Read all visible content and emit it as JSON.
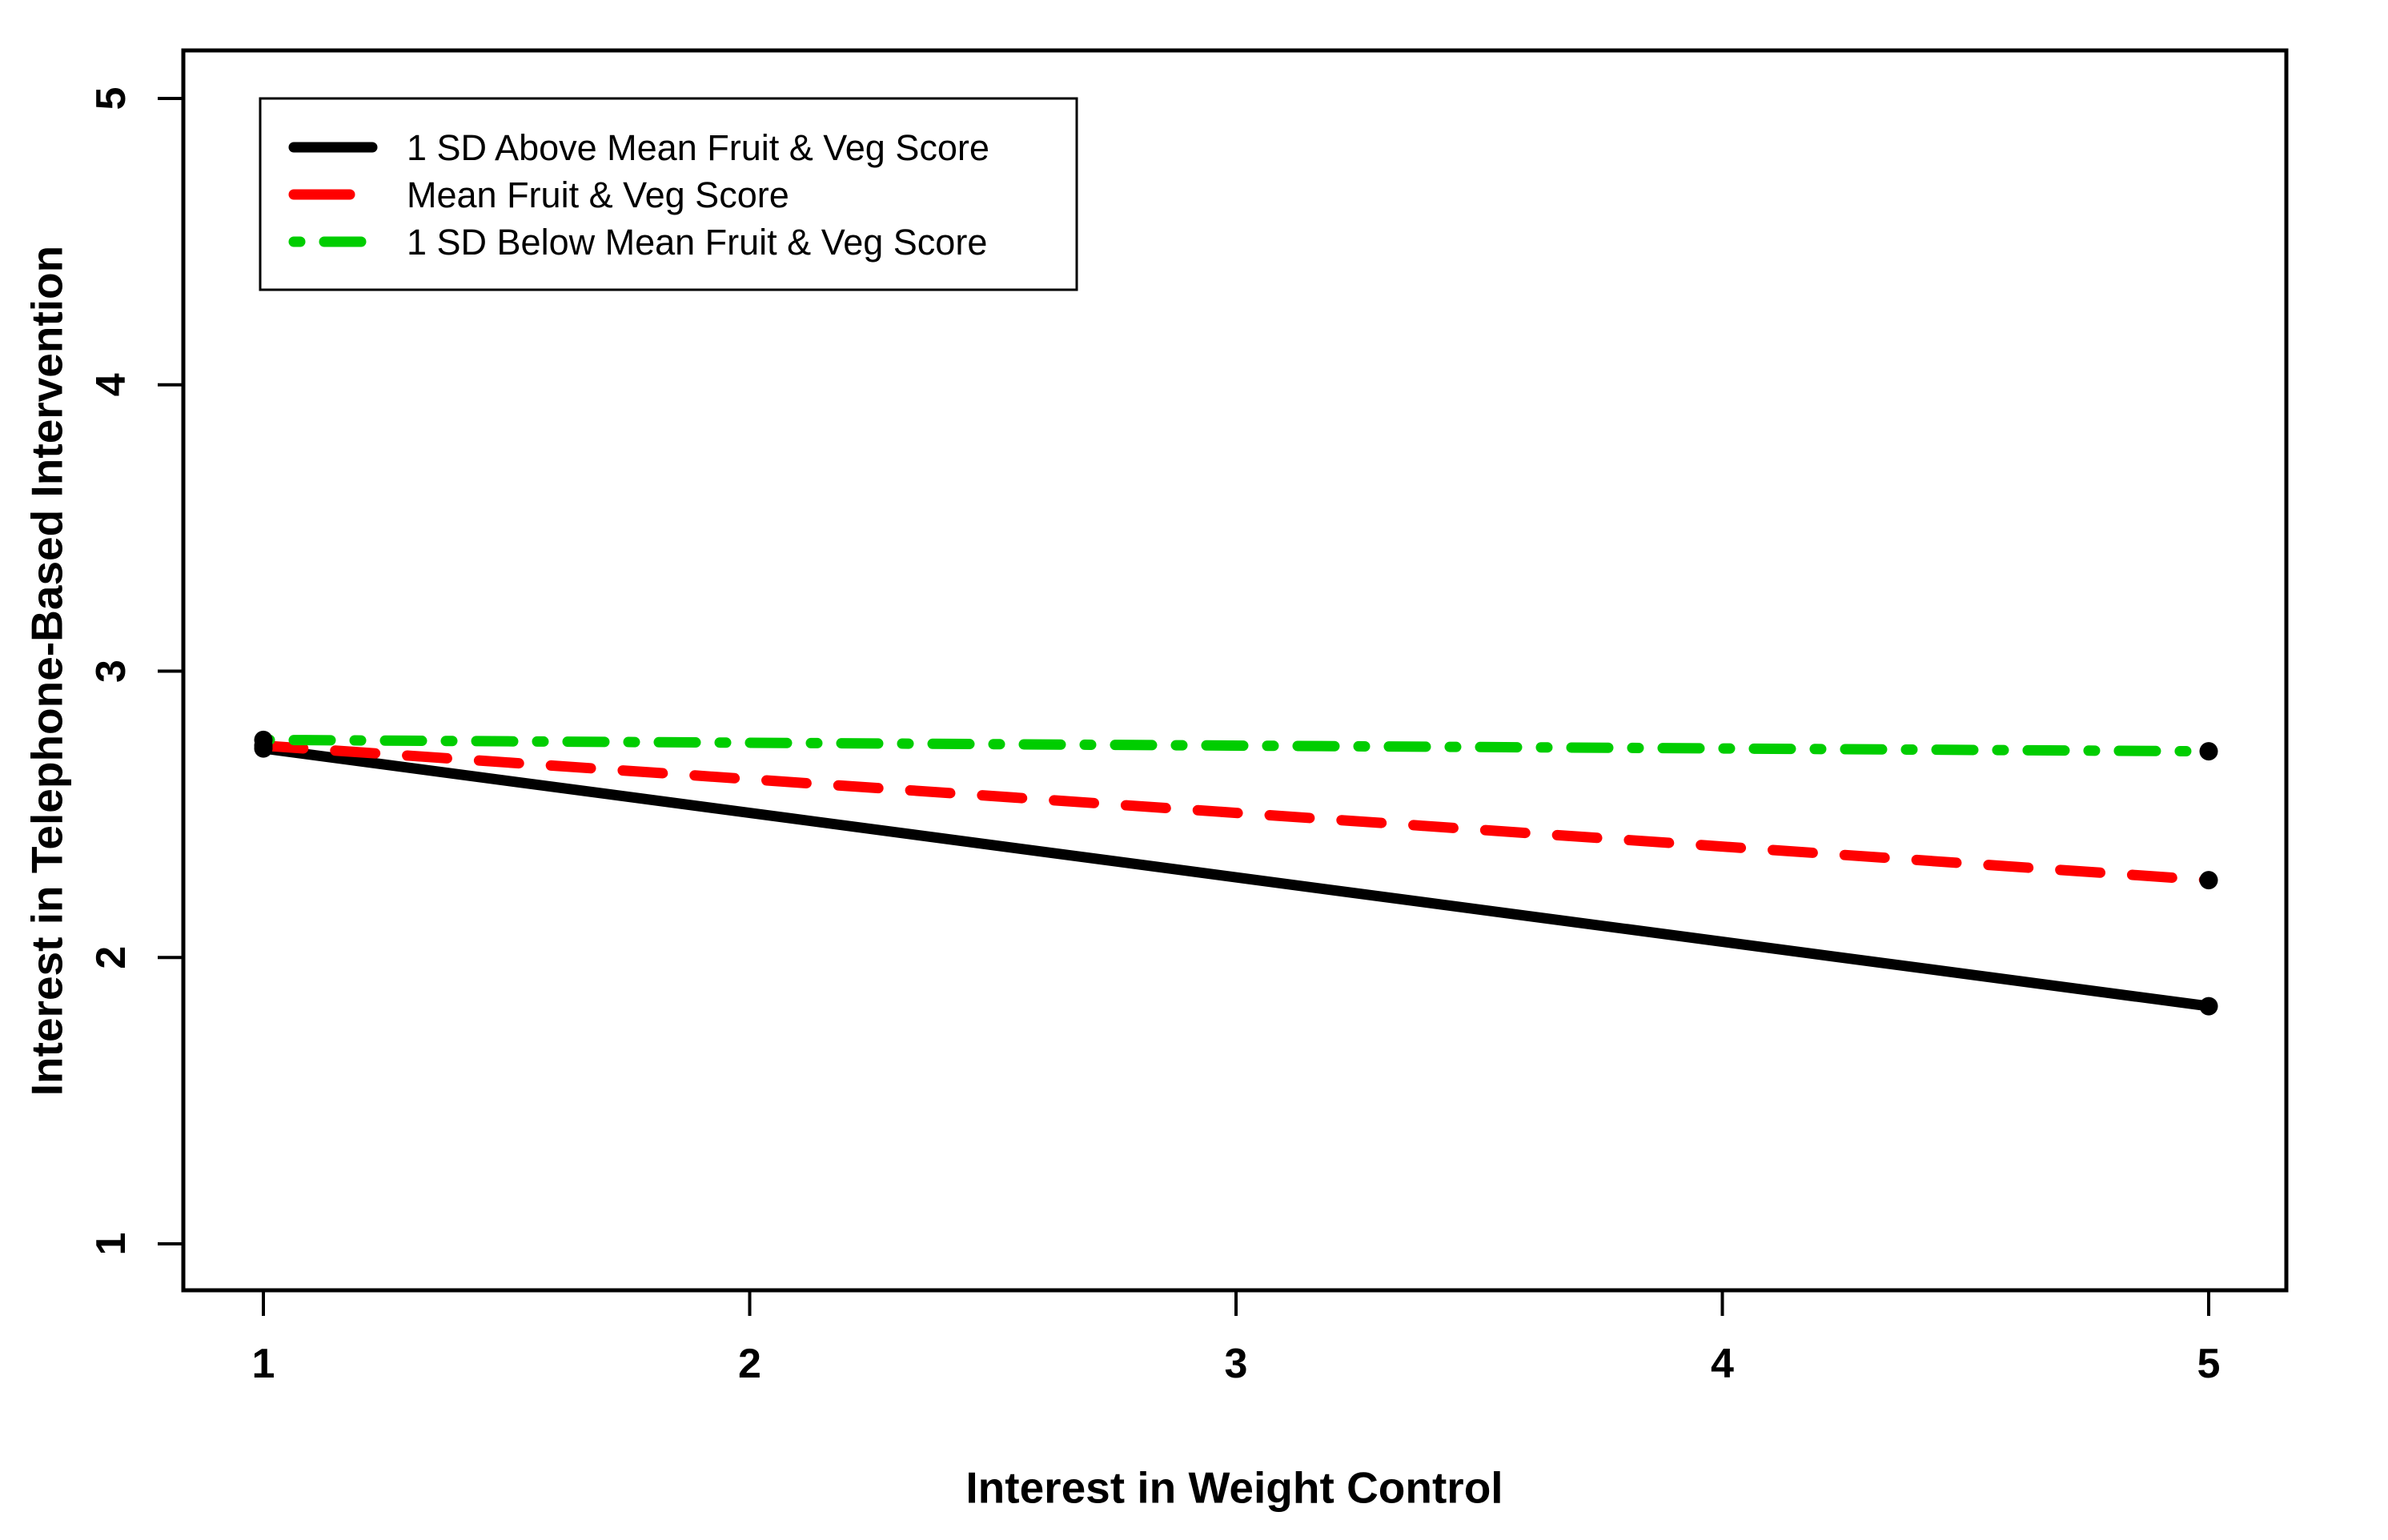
{
  "chart_data": {
    "type": "line",
    "title": "",
    "xlabel": "Interest in Weight Control",
    "ylabel": "Interest in Telephone-Based Intervention",
    "xticks": [
      "1",
      "2",
      "3",
      "4",
      "5"
    ],
    "yticks": [
      "1",
      "2",
      "3",
      "4",
      "5"
    ],
    "xlim": [
      1,
      5
    ],
    "ylim": [
      1,
      5
    ],
    "grid": false,
    "background": "#FFFFFF",
    "axis_color": "#000000",
    "legend_position": "top-left",
    "series": [
      {
        "name": "1 SD Above Mean Fruit & Veg Score",
        "color": "#000000",
        "linestyle": "solid",
        "x": [
          1,
          5
        ],
        "values": [
          2.73,
          1.83
        ]
      },
      {
        "name": "Mean Fruit & Veg Score",
        "color": "#FF0000",
        "linestyle": "dashed",
        "x": [
          1,
          5
        ],
        "values": [
          2.74,
          2.27
        ]
      },
      {
        "name": "1 SD Below Mean Fruit & Veg Score",
        "color": "#00CD00",
        "linestyle": "twodash",
        "x": [
          1,
          5
        ],
        "values": [
          2.76,
          2.72
        ]
      }
    ],
    "markers": {
      "shape": "filled-circle",
      "color": "#000000"
    }
  }
}
